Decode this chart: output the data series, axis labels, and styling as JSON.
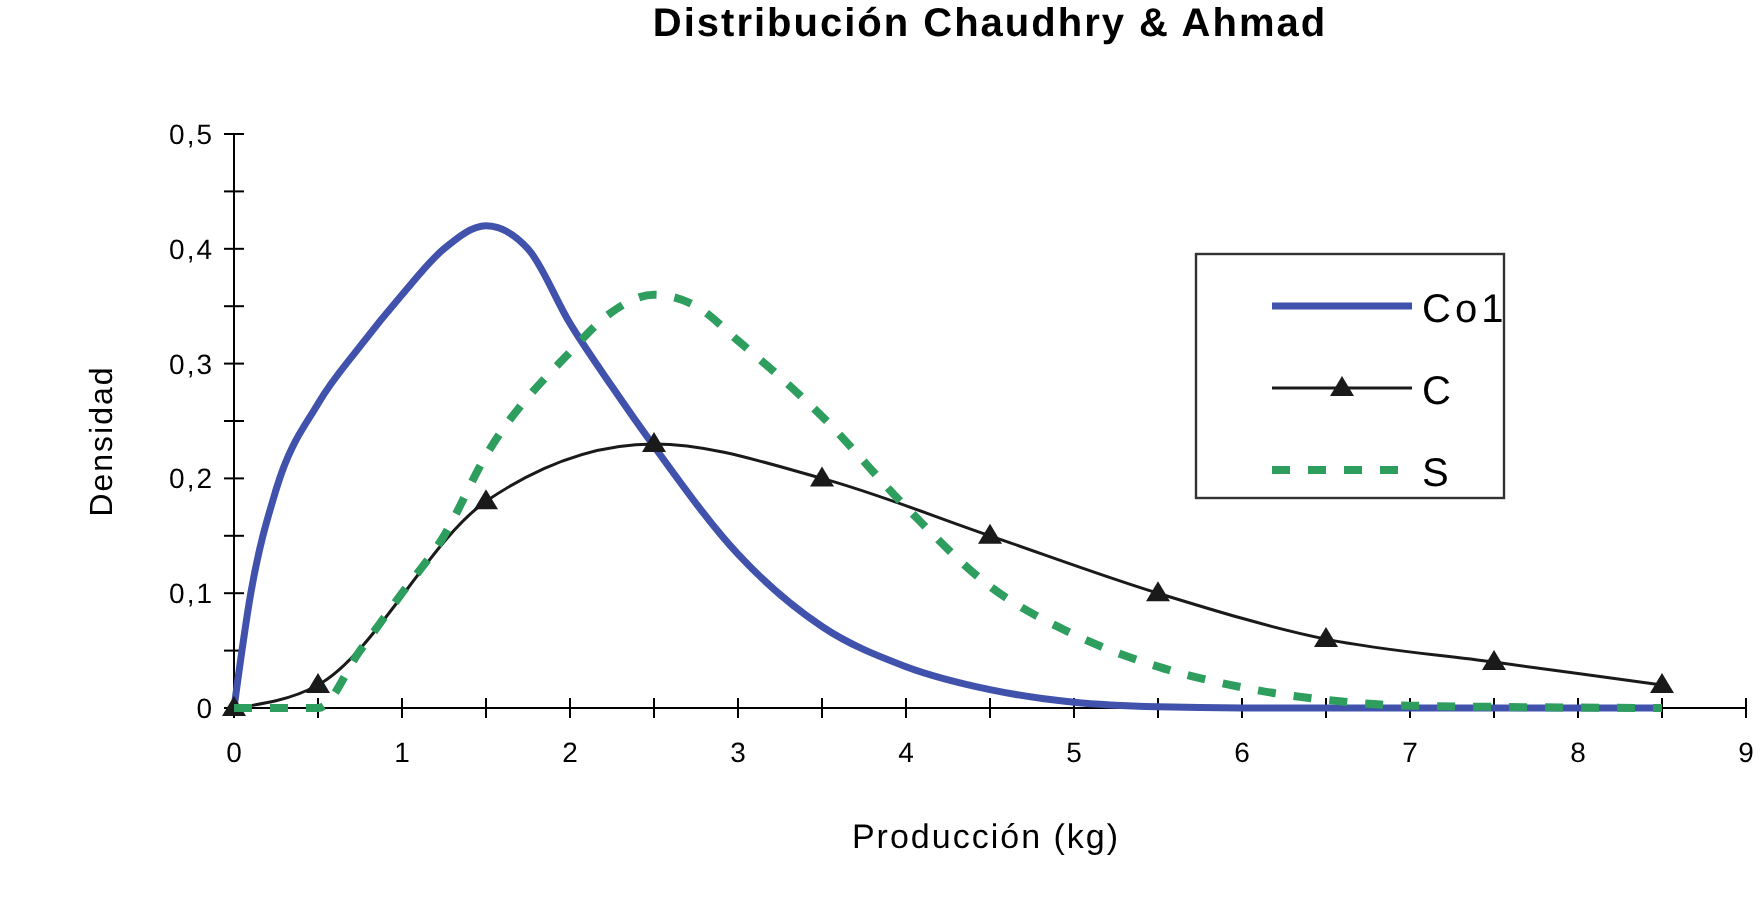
{
  "chart_data": {
    "type": "line",
    "title": "Distribución Chaudhry & Ahmad",
    "xlabel": "Producción (kg)",
    "ylabel": "Densidad",
    "xlim": [
      0,
      9
    ],
    "xticks": [
      0,
      {
        "value": 0.5,
        "label": null
      },
      1,
      {
        "value": 1.5,
        "label": null
      },
      2,
      {
        "value": 2.5,
        "label": null
      },
      3,
      {
        "value": 3.5,
        "label": null
      },
      4,
      {
        "value": 4.5,
        "label": null
      },
      5,
      {
        "value": 5.5,
        "label": null
      },
      6,
      {
        "value": 6.5,
        "label": null
      },
      7,
      {
        "value": 7.5,
        "label": null
      },
      8,
      {
        "value": 8.5,
        "label": null
      },
      9
    ],
    "ylim": [
      0,
      0.5
    ],
    "yticks": [
      {
        "value": 0,
        "label": "0"
      },
      {
        "value": 0.05,
        "label": null
      },
      {
        "value": 0.1,
        "label": "0,1"
      },
      {
        "value": 0.15,
        "label": null
      },
      {
        "value": 0.2,
        "label": "0,2"
      },
      {
        "value": 0.25,
        "label": null
      },
      {
        "value": 0.3,
        "label": "0,3"
      },
      {
        "value": 0.35,
        "label": null
      },
      {
        "value": 0.4,
        "label": "0,4"
      },
      {
        "value": 0.45,
        "label": null
      },
      {
        "value": 0.5,
        "label": "0,5"
      }
    ],
    "grid": false,
    "legend": "top right",
    "series": [
      {
        "name": "Co1",
        "color": "#4152ad",
        "marker": "none",
        "line_style": "solid",
        "x": [
          0,
          0.1,
          0.25,
          0.5,
          0.75,
          1,
          1.25,
          1.5,
          1.75,
          2,
          2.25,
          2.5,
          3,
          3.5,
          4,
          4.5,
          5,
          5.5,
          6,
          7,
          8,
          8.5
        ],
        "values": [
          0,
          0.1,
          0.19,
          0.265,
          0.315,
          0.36,
          0.4,
          0.42,
          0.4,
          0.335,
          0.28,
          0.228,
          0.134,
          0.071,
          0.036,
          0.016,
          0.005,
          0.001,
          0,
          0,
          0,
          0
        ]
      },
      {
        "name": "C",
        "color": "#1a1a1a",
        "marker": "triangle",
        "line_style": "solid",
        "x": [
          0,
          0.5,
          1.5,
          2.5,
          3.5,
          4.5,
          5.5,
          6.5,
          7.5,
          8.5
        ],
        "values": [
          0,
          0.02,
          0.18,
          0.23,
          0.2,
          0.15,
          0.1,
          0.06,
          0.04,
          0.02
        ]
      },
      {
        "name": "S",
        "color": "#2e9e5e",
        "marker": "none",
        "line_style": "dashed",
        "x": [
          0,
          0.5,
          0.75,
          1,
          1.25,
          1.5,
          2,
          2.25,
          2.5,
          2.75,
          3,
          3.5,
          4,
          4.5,
          5,
          5.5,
          6,
          6.5,
          7,
          8.5
        ],
        "values": [
          0,
          0,
          0.05,
          0.1,
          0.15,
          0.22,
          0.31,
          0.345,
          0.36,
          0.35,
          0.32,
          0.254,
          0.175,
          0.106,
          0.064,
          0.036,
          0.018,
          0.007,
          0.002,
          0
        ]
      }
    ]
  }
}
